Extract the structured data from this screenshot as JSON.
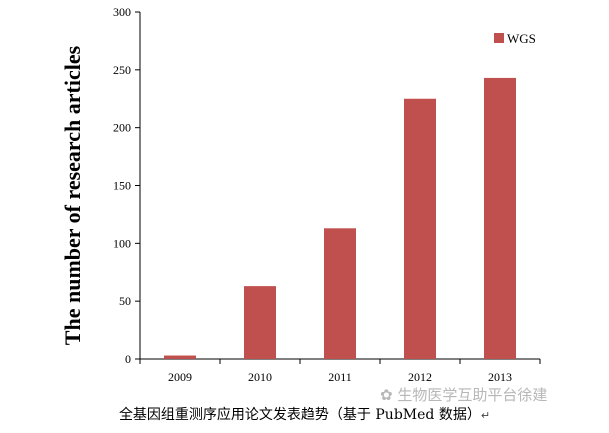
{
  "chart_data": {
    "type": "bar",
    "categories": [
      "2009",
      "2010",
      "2011",
      "2012",
      "2013"
    ],
    "series": [
      {
        "name": "WGS",
        "values": [
          3,
          63,
          113,
          225,
          243
        ],
        "color": "#c0504d"
      }
    ],
    "ylabel": "The number of  research articles",
    "ylim": [
      0,
      300
    ],
    "yticks": [
      0,
      50,
      100,
      150,
      200,
      250,
      300
    ],
    "grid": false,
    "legend": "top-right"
  },
  "caption": "全基因组重测序应用论文发表趋势（基于 PubMed 数据）",
  "caption_mark": "↵",
  "watermark": "生物医学互助平台徐建"
}
